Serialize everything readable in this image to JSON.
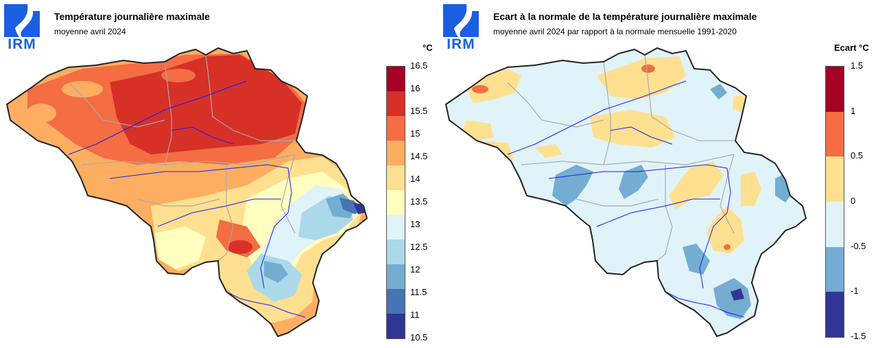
{
  "logo": {
    "text": "IRM"
  },
  "left_panel": {
    "title": "Température journalière maximale",
    "subtitle": "moyenne avril 2024",
    "legend_unit": "°C",
    "legend_labels": [
      "16.5",
      "16",
      "15.5",
      "15",
      "14.5",
      "14",
      "13.5",
      "13",
      "12.5",
      "12",
      "11.5",
      "11",
      "10.5"
    ],
    "legend_colors": [
      "#a50026",
      "#d73027",
      "#f46d43",
      "#fdae61",
      "#fee090",
      "#ffffbf",
      "#e0f3f8",
      "#abd9e9",
      "#74add1",
      "#4575b4",
      "#313695"
    ]
  },
  "right_panel": {
    "title": "Ecart à la normale de la température journalière maximale",
    "subtitle": "moyenne avril 2024 par rapport à la normale mensuelle 1991-2020",
    "legend_unit": "Ecart °C",
    "legend_labels": [
      "1.5",
      "1",
      "0.5",
      "0",
      "-0.5",
      "-1",
      "-1.5"
    ],
    "legend_colors": [
      "#a50026",
      "#f46d43",
      "#fee090",
      "#e0f3f8",
      "#74add1",
      "#313695"
    ]
  },
  "map_colors": {
    "border": "#222222",
    "rivers": "#1a1aff",
    "provinces": "#aaaaaa"
  }
}
